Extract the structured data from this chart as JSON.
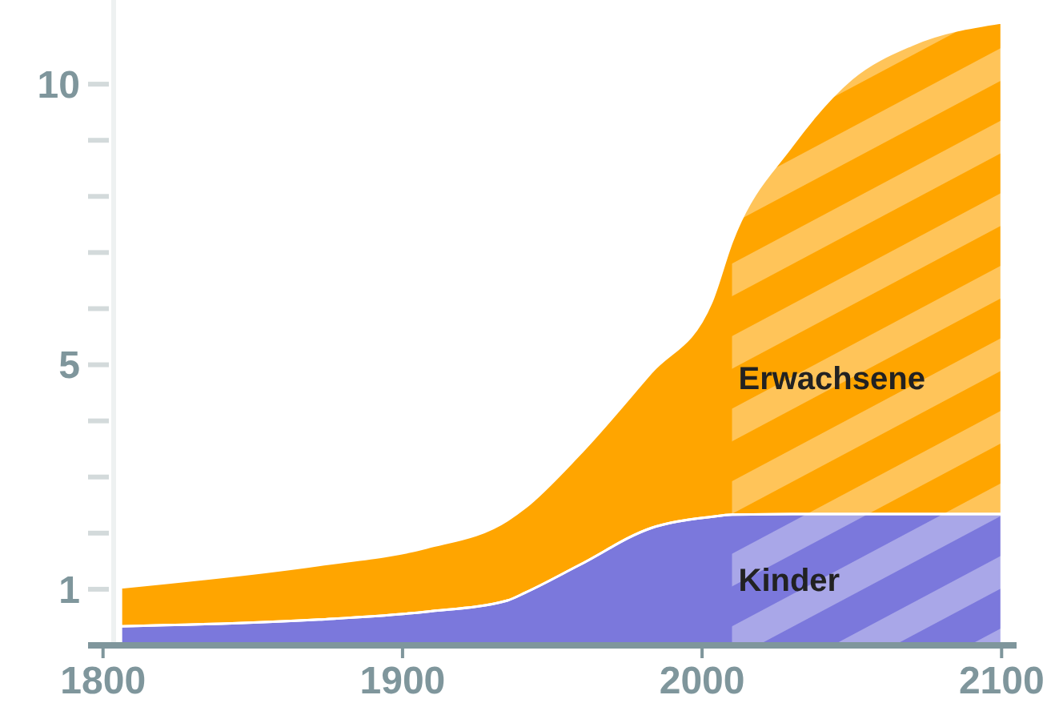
{
  "chart_data": {
    "type": "area",
    "stacked": true,
    "x": [
      1806,
      1872,
      1908,
      1935,
      1941,
      1959,
      1983,
      2003,
      2010,
      2030,
      2050,
      2070,
      2100
    ],
    "series": [
      {
        "name": "Kinder",
        "color": "#7b78dc",
        "values": [
          0.34,
          0.46,
          0.6,
          0.8,
          0.94,
          1.43,
          2.09,
          2.29,
          2.33,
          2.34,
          2.34,
          2.34,
          2.34
        ]
      },
      {
        "name": "Erwachsene",
        "color": "#ffa500",
        "values": [
          0.69,
          0.97,
          1.14,
          1.43,
          1.52,
          1.97,
          2.77,
          3.81,
          4.87,
          6.56,
          7.76,
          8.36,
          8.76
        ]
      }
    ],
    "xlim": [
      1795,
      2105
    ],
    "xticks": [
      1800,
      1900,
      2000,
      2100
    ],
    "ylim": [
      0,
      11.5
    ],
    "yticks": [
      1,
      {
        "value": 2,
        "label": null
      },
      {
        "value": 3,
        "label": null
      },
      {
        "value": 4,
        "label": null
      },
      5,
      {
        "value": 6,
        "label": null
      },
      {
        "value": 7,
        "label": null
      },
      {
        "value": 8,
        "label": null
      },
      {
        "value": 9,
        "label": null
      },
      10
    ],
    "bands": [
      {
        "axis": "x",
        "from": 2010,
        "to": 2100,
        "color": "#ffffff"
      }
    ],
    "grid": false,
    "legend": false
  }
}
